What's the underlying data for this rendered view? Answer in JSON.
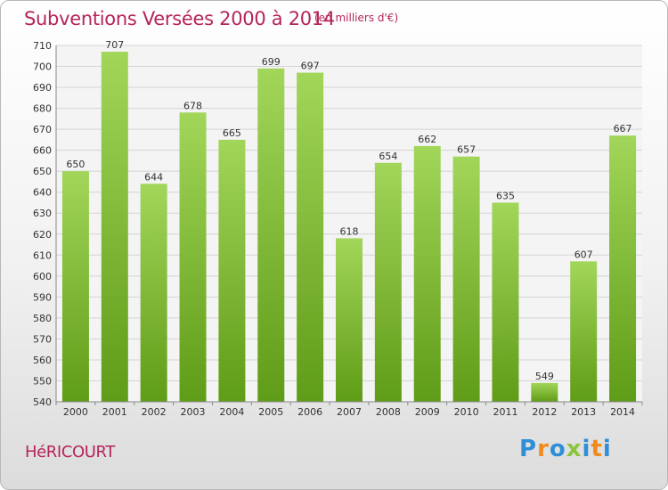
{
  "title": "Subventions Versées 2000 à 2014",
  "subtitle": "(en milliers d'€)",
  "town": "HéRICOURT",
  "logo": {
    "text": "Proxiti",
    "letters": [
      {
        "ch": "P",
        "color": "#2f8fd6"
      },
      {
        "ch": "r",
        "color": "#f08a1c"
      },
      {
        "ch": "o",
        "color": "#2f8fd6"
      },
      {
        "ch": "x",
        "color": "#8cc43c"
      },
      {
        "ch": "i",
        "color": "#2f8fd6"
      },
      {
        "ch": "t",
        "color": "#f08a1c"
      },
      {
        "ch": "i",
        "color": "#2f8fd6"
      }
    ]
  },
  "colors": {
    "title": "#b5245c",
    "bar_top": "#a2d65a",
    "bar_bottom": "#5f9c17",
    "grid": "#d4d4d4"
  },
  "chart_data": {
    "type": "bar",
    "categories": [
      "2000",
      "2001",
      "2002",
      "2003",
      "2004",
      "2005",
      "2006",
      "2007",
      "2008",
      "2009",
      "2010",
      "2011",
      "2012",
      "2013",
      "2014"
    ],
    "values": [
      650,
      707,
      644,
      678,
      665,
      699,
      697,
      618,
      654,
      662,
      657,
      635,
      549,
      607,
      667
    ],
    "ylim": [
      540,
      710
    ],
    "yticks": [
      540,
      550,
      560,
      570,
      580,
      590,
      600,
      610,
      620,
      630,
      640,
      650,
      660,
      670,
      680,
      690,
      700,
      710
    ],
    "grid": true
  }
}
